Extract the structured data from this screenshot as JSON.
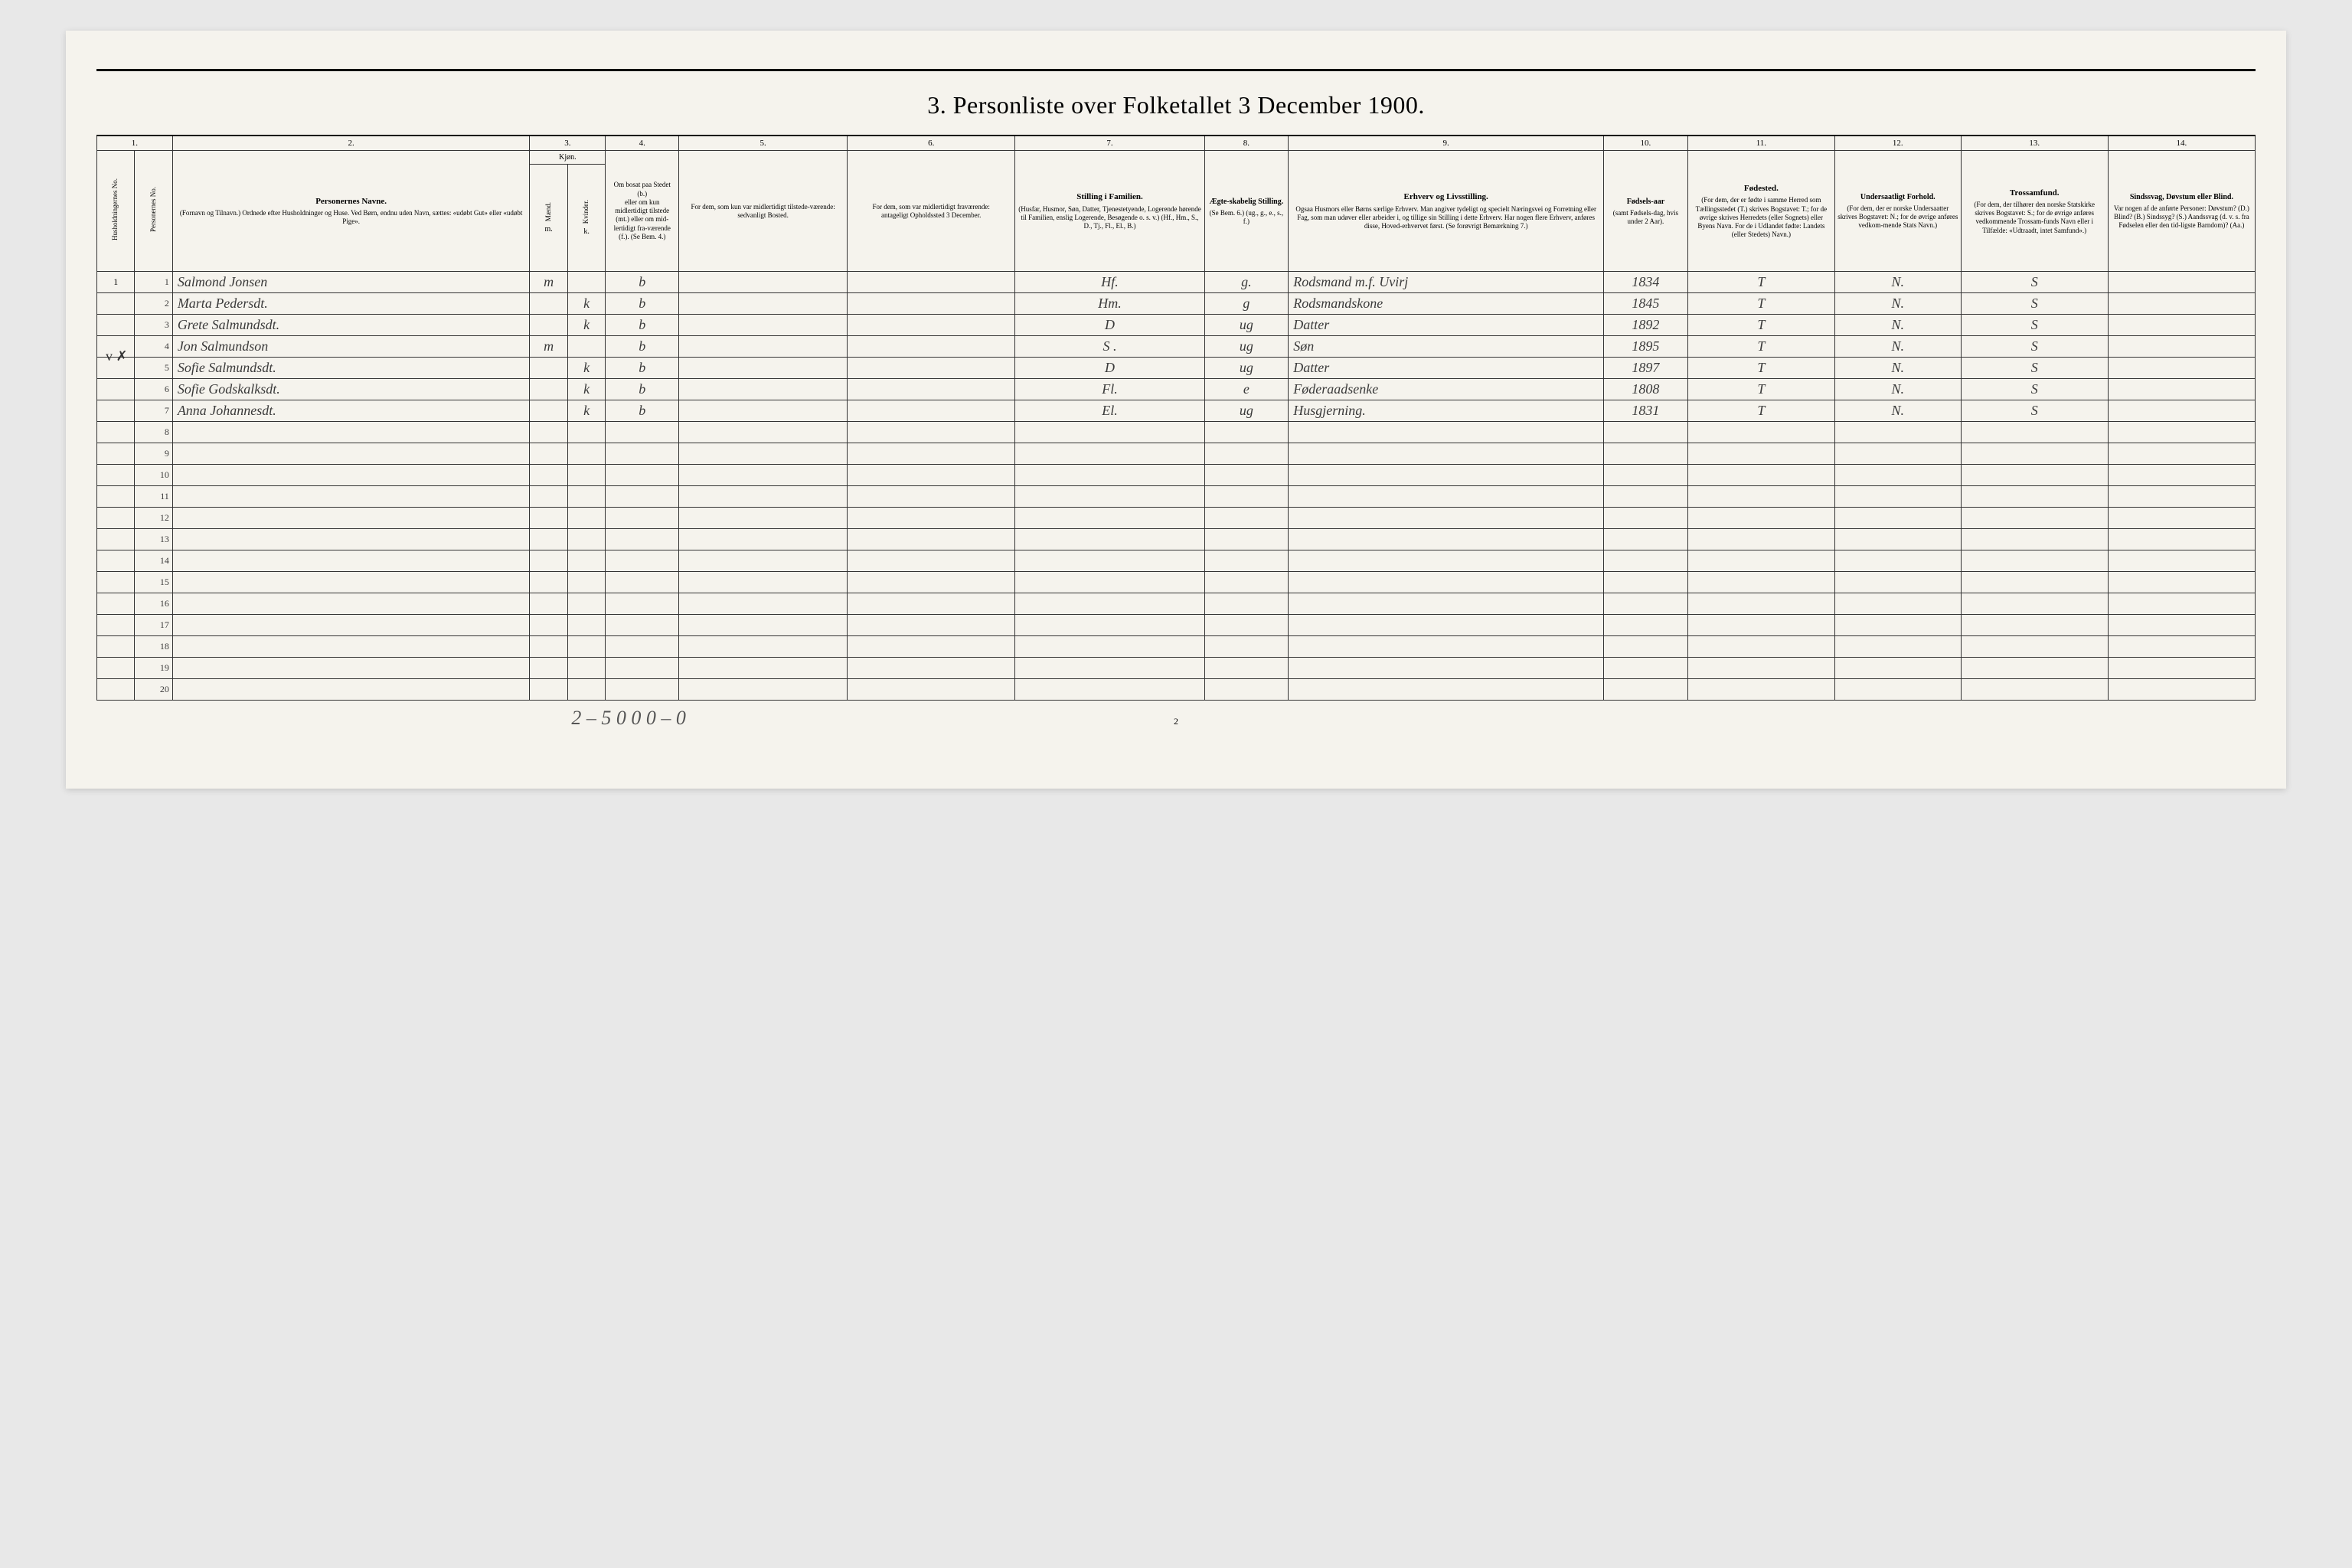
{
  "title": "3. Personliste over Folketallet 3 December 1900.",
  "column_numbers": [
    "1.",
    "2.",
    "3.",
    "4.",
    "5.",
    "6.",
    "7.",
    "8.",
    "9.",
    "10.",
    "11.",
    "12.",
    "13.",
    "14."
  ],
  "headers": {
    "hush": "Husholdningernes No.",
    "pers": "Personernes No.",
    "name_main": "Personernes Navne.",
    "name_sub": "(Fornavn og Tilnavn.)\nOrdnede efter Husholdninger og Huse.\nVed Børn, endnu uden Navn, sættes: «udøbt Gut» eller «udøbt Pige».",
    "kjon": "Kjøn.",
    "m": "Mænd.",
    "k": "Kvinder.",
    "m_abbr": "m.",
    "k_abbr": "k.",
    "bosat_main": "Om bosat paa Stedet (b.)",
    "bosat_sub": "eller om kun midlertidigt tilstede (mt.) eller om mid-lertidigt fra-værende (f.). (Se Bem. 4.)",
    "midl_main": "For dem, som kun var midlertidigt tilstede-værende:",
    "midl_sub": "sedvanligt Bosted.",
    "frav_main": "For dem, som var midlertidigt fraværende:",
    "frav_sub": "antageligt Opholdssted 3 December.",
    "still_main": "Stilling i Familien.",
    "still_sub": "(Husfar, Husmor, Søn, Datter, Tjenestetyende, Logerende hørende til Familien, enslig Logerende, Besøgende o. s. v.)\n(Hf., Hm., S., D., Tj., Fl., El., B.)",
    "egte_main": "Ægte-skabelig Stilling.",
    "egte_sub": "(Se Bem. 6.)\n(ug., g., e., s., f.)",
    "erhv_main": "Erhverv og Livsstilling.",
    "erhv_sub": "Ogsaa Husmors eller Børns særlige Erhverv. Man angiver tydeligt og specielt Næringsvei og Forretning eller Fag, som man udøver eller arbeider i, og tillige sin Stilling i dette Erhverv. Har nogen flere Erhverv, anføres disse, Hoved-erhvervet først.\n(Se forøvrigt Bemærkning 7.)",
    "aar_main": "Fødsels-aar",
    "aar_sub": "(samt Fødsels-dag, hvis under 2 Aar).",
    "fod_main": "Fødested.",
    "fod_sub": "(For dem, der er fødte i samme Herred som Tællingsstedet (T.) skrives Bogstavet: T.; for de øvrige skrives Herredets (eller Sognets) eller Byens Navn. For de i Udlandet fødte: Landets (eller Stedets) Navn.)",
    "und_main": "Undersaatligt Forhold.",
    "und_sub": "(For dem, der er norske Undersaatter skrives Bogstavet: N.; for de øvrige anføres vedkom-mende Stats Navn.)",
    "tro_main": "Trossamfund.",
    "tro_sub": "(For dem, der tilhører den norske Statskirke skrives Bogstavet: S.; for de øvrige anføres vedkommende Trossam-funds Navn eller i Tilfælde: «Udtraadt, intet Samfund».)",
    "sind_main": "Sindssvag, Døvstum eller Blind.",
    "sind_sub": "Var nogen af de anførte Personer:\nDøvstum? (D.)\nBlind? (B.)\nSindssyg? (S.)\nAandssvag (d. v. s. fra Fødselen eller den tid-ligste Barndom)? (Aa.)"
  },
  "rows": [
    {
      "hush": "1",
      "pers": "1",
      "name": "Salmond Jonsen",
      "m": "m",
      "k": "",
      "bosat": "b",
      "still": "Hf.",
      "egte": "g.",
      "erhv": "Rodsmand m.f.   Uvirj",
      "aar": "1834",
      "fod": "T",
      "und": "N.",
      "tro": "S"
    },
    {
      "hush": "",
      "pers": "2",
      "name": "Marta Pedersdt.",
      "m": "",
      "k": "k",
      "bosat": "b",
      "still": "Hm.",
      "egte": "g",
      "erhv": "Rodsmandskone",
      "aar": "1845",
      "fod": "T",
      "und": "N.",
      "tro": "S"
    },
    {
      "hush": "",
      "pers": "3",
      "name": "Grete Salmundsdt.",
      "m": "",
      "k": "k",
      "bosat": "b",
      "still": "D",
      "egte": "ug",
      "erhv": "Datter",
      "aar": "1892",
      "fod": "T",
      "und": "N.",
      "tro": "S"
    },
    {
      "hush": "",
      "pers": "4",
      "name": "Jon Salmundson",
      "m": "m",
      "k": "",
      "bosat": "b",
      "still": "S   .",
      "egte": "ug",
      "erhv": "Søn",
      "aar": "1895",
      "fod": "T",
      "und": "N.",
      "tro": "S"
    },
    {
      "hush": "",
      "pers": "5",
      "name": "Sofie Salmundsdt.",
      "m": "",
      "k": "k",
      "bosat": "b",
      "still": "D",
      "egte": "ug",
      "erhv": "Datter",
      "aar": "1897",
      "fod": "T",
      "und": "N.",
      "tro": "S"
    },
    {
      "hush": "",
      "pers": "6",
      "name": "Sofie Godskalksdt.",
      "m": "",
      "k": "k",
      "bosat": "b",
      "still": "Fl.",
      "egte": "e",
      "erhv": "Føderaadsenke",
      "aar": "1808",
      "fod": "T",
      "und": "N.",
      "tro": "S"
    },
    {
      "hush": "",
      "pers": "7",
      "name": "Anna Johannesdt.",
      "m": "",
      "k": "k",
      "bosat": "b",
      "still": "El.",
      "egte": "ug",
      "erhv": "Husgjerning.",
      "aar": "1831",
      "fod": "T",
      "und": "N.",
      "tro": "S"
    }
  ],
  "empty_row_numbers": [
    "8",
    "9",
    "10",
    "11",
    "12",
    "13",
    "14",
    "15",
    "16",
    "17",
    "18",
    "19",
    "20"
  ],
  "footer_scribble": "2 – 5   0   0    0 – 0",
  "page_number": "2",
  "margin_mark": "v ✗",
  "colors": {
    "page_bg": "#f5f3ed",
    "body_bg": "#e8e8e8",
    "border": "#333333",
    "cursive": "#3a3a3a"
  }
}
